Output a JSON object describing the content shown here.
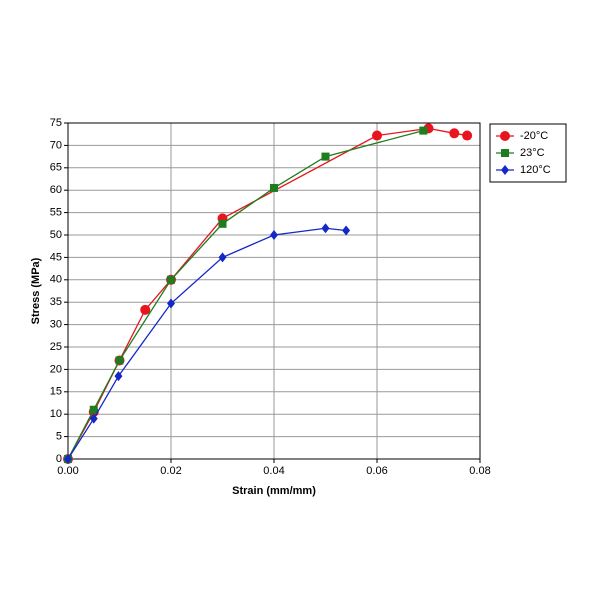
{
  "chart_data": {
    "type": "line",
    "x_label": "Strain (mm/mm)",
    "y_label": "Stress (MPa)",
    "xlim": [
      0,
      0.08
    ],
    "xticks": [
      {
        "value": 0,
        "label": "0.00"
      },
      {
        "value": 0.02,
        "label": "0.02"
      },
      {
        "value": 0.04,
        "label": "0.04"
      },
      {
        "value": 0.06,
        "label": "0.06"
      },
      {
        "value": 0.08,
        "label": "0.08"
      }
    ],
    "ylim": [
      0,
      75
    ],
    "yticks": [
      0,
      5,
      10,
      15,
      20,
      25,
      30,
      35,
      40,
      45,
      50,
      55,
      60,
      65,
      70,
      75
    ],
    "grid": true,
    "legend": "right",
    "series": [
      {
        "name": "-20°C",
        "color": "#e8141e",
        "marker": "circle",
        "x": [
          0,
          0.005,
          0.01,
          0.015,
          0.02,
          0.03,
          0.06,
          0.07,
          0.075,
          0.0775
        ],
        "values": [
          0,
          10.5,
          22,
          33.3,
          40,
          53.7,
          72.2,
          73.8,
          72.7,
          72.2
        ]
      },
      {
        "name": "23°C",
        "color": "#1e7d1e",
        "marker": "square",
        "x": [
          0,
          0.005,
          0.01,
          0.02,
          0.03,
          0.04,
          0.05,
          0.069
        ],
        "values": [
          0,
          11,
          22,
          40,
          52.5,
          60.5,
          67.5,
          73.3
        ]
      },
      {
        "name": "120°C",
        "color": "#1428c8",
        "marker": "diamond",
        "x": [
          0,
          0.005,
          0.0098,
          0.02,
          0.03,
          0.04,
          0.05,
          0.054
        ],
        "values": [
          0,
          9,
          18.5,
          34.7,
          45,
          50,
          51.5,
          51
        ]
      }
    ]
  }
}
